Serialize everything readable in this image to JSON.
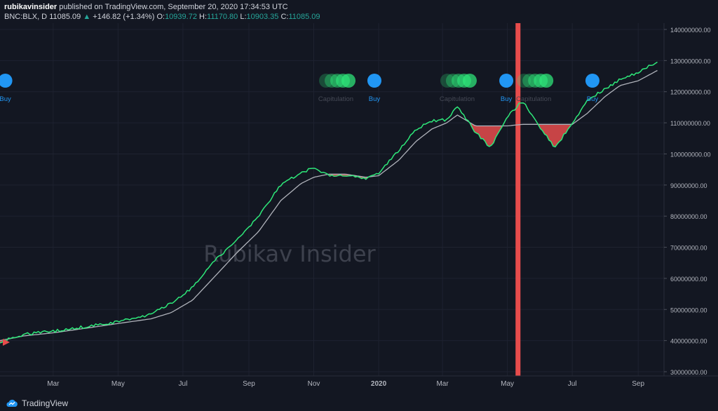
{
  "header": {
    "publisher": "rubikavinsider",
    "published_line": "published on TradingView.com, September 20, 2020 17:34:53 UTC",
    "symbol": "BNC:BLX, D",
    "last": "11085.09",
    "change": "+146.82 (+1.34%)",
    "open_label": "O:",
    "open": "10939.72",
    "high_label": "H:",
    "high": "11170.80",
    "low_label": "L:",
    "low": "10903.35",
    "close_label": "C:",
    "close": "11085.09"
  },
  "watermark": "Rubikav Insider",
  "footer": {
    "brand": "TradingView",
    "logo_icon": "tradingview-cloud-icon"
  },
  "colors": {
    "background": "#131722",
    "green": "#2ee87a",
    "gray": "#b0b3bb",
    "red_fill": "#e74c4c",
    "buy_blue": "#2196f3",
    "grid": "#1e2230"
  },
  "chart_data": {
    "type": "line",
    "title": "",
    "x_ticks": [
      "Mar",
      "May",
      "Jul",
      "Sep",
      "Nov",
      "2020",
      "Mar",
      "May",
      "Jul",
      "Sep"
    ],
    "y_ticks": [
      "140000000.00",
      "130000000.00",
      "120000000.00",
      "110000000.00",
      "100000000.00",
      "90000000.00",
      "80000000.00",
      "70000000.00",
      "60000000.00",
      "50000000.00",
      "40000000.00",
      "30000000.00"
    ],
    "ylim": [
      30000000,
      140000000
    ],
    "x_range": [
      "2019-01-10",
      "2020-09-20"
    ],
    "series": [
      {
        "name": "",
        "x": [
          "2019-01-10",
          "2019-02-01",
          "2019-03-01",
          "2019-04-01",
          "2019-05-01",
          "2019-06-01",
          "2019-06-20",
          "2019-07-10",
          "2019-08-01",
          "2019-08-20",
          "2019-09-10",
          "2019-10-01",
          "2019-10-20",
          "2019-11-01",
          "2019-11-15",
          "2019-12-01",
          "2019-12-20",
          "2020-01-01",
          "2020-01-20",
          "2020-02-05",
          "2020-02-20",
          "2020-03-05",
          "2020-03-15",
          "2020-04-01",
          "2020-04-15",
          "2020-05-01",
          "2020-05-15",
          "2020-06-01",
          "2020-06-15",
          "2020-07-01",
          "2020-07-15",
          "2020-08-01",
          "2020-08-15",
          "2020-09-01",
          "2020-09-20"
        ],
        "values": [
          39500000,
          42000000,
          43000000,
          44500000,
          46000000,
          48500000,
          52000000,
          57000000,
          66000000,
          72000000,
          80000000,
          90000000,
          94000000,
          95500000,
          93000000,
          93000000,
          92000000,
          94000000,
          101000000,
          108000000,
          110500000,
          111000000,
          115000000,
          107000000,
          102000000,
          112000000,
          117000000,
          108500000,
          102000000,
          110000000,
          117000000,
          121000000,
          124000000,
          126000000,
          130000000
        ]
      },
      {
        "name": "",
        "x": [
          "2019-01-10",
          "2019-02-01",
          "2019-03-01",
          "2019-04-01",
          "2019-05-01",
          "2019-06-01",
          "2019-06-20",
          "2019-07-10",
          "2019-08-01",
          "2019-08-20",
          "2019-09-10",
          "2019-10-01",
          "2019-10-20",
          "2019-11-01",
          "2019-11-15",
          "2019-12-01",
          "2019-12-20",
          "2020-01-01",
          "2020-01-20",
          "2020-02-05",
          "2020-02-20",
          "2020-03-05",
          "2020-03-15",
          "2020-04-01",
          "2020-04-15",
          "2020-05-01",
          "2020-05-15",
          "2020-06-01",
          "2020-06-15",
          "2020-07-01",
          "2020-07-15",
          "2020-08-01",
          "2020-08-15",
          "2020-09-01",
          "2020-09-20"
        ],
        "values": [
          40000000,
          41500000,
          42500000,
          44000000,
          45500000,
          47000000,
          49000000,
          53000000,
          61000000,
          68000000,
          75000000,
          85000000,
          90500000,
          92500000,
          93500000,
          93500000,
          92500000,
          93000000,
          98000000,
          104000000,
          108000000,
          110000000,
          112500000,
          109000000,
          109000000,
          109000000,
          109500000,
          109500000,
          109500000,
          109500000,
          113000000,
          118500000,
          122000000,
          123500000,
          127000000
        ]
      }
    ],
    "bands": [
      {
        "x": "2020-05-11",
        "width_days": 3
      }
    ],
    "signals": [
      {
        "type": "Buy",
        "x": "2019-01-15",
        "label": "Buy"
      },
      {
        "type": "Capitulation",
        "x": "2019-12-01",
        "label": "Capitulation"
      },
      {
        "type": "Buy",
        "x": "2019-12-28",
        "label": "Buy"
      },
      {
        "type": "Capitulation",
        "x": "2020-03-24",
        "label": "Capitulation"
      },
      {
        "type": "Buy",
        "x": "2020-04-30",
        "label": "Buy"
      },
      {
        "type": "Capitulation",
        "x": "2020-06-04",
        "label": "Capitulation"
      },
      {
        "type": "Buy",
        "x": "2020-07-20",
        "label": "Buy"
      }
    ],
    "legend": "none",
    "grid": true
  }
}
